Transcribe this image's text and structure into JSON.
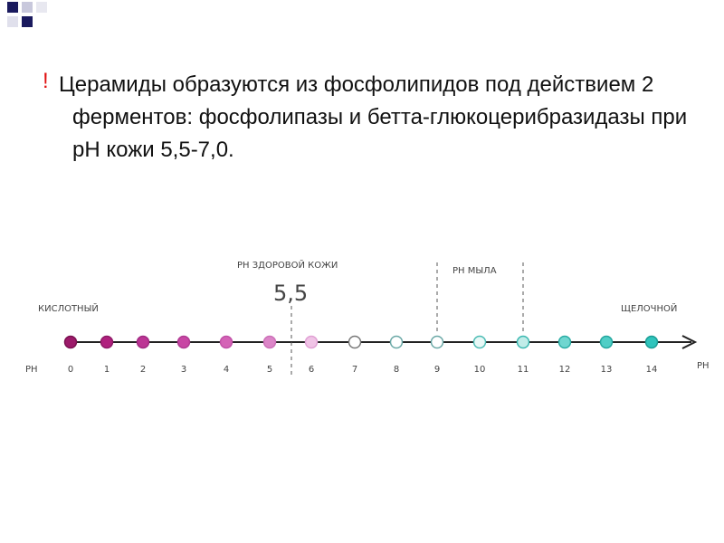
{
  "bullet": {
    "mark": "!",
    "text": "Церамиды образуются из фосфолипидов под действием 2 ферментов: фосфолипазы и бетта-глюкоцерибразидазы при рН кожи 5,5-7,0."
  },
  "scale": {
    "left_label": "PH",
    "right_label": "PH",
    "acid_label": "КИСЛОТНЫЙ",
    "alkaline_label": "ЩЕЛОЧНОЙ",
    "healthy_skin_label": "PH ЗДОРОВОЙ КОЖИ",
    "healthy_skin_value": "5,5",
    "soap_label": "PH МЫЛА",
    "ticks": [
      "0",
      "1",
      "2",
      "3",
      "4",
      "5",
      "6",
      "7",
      "8",
      "9",
      "10",
      "11",
      "12",
      "13",
      "14"
    ]
  }
}
